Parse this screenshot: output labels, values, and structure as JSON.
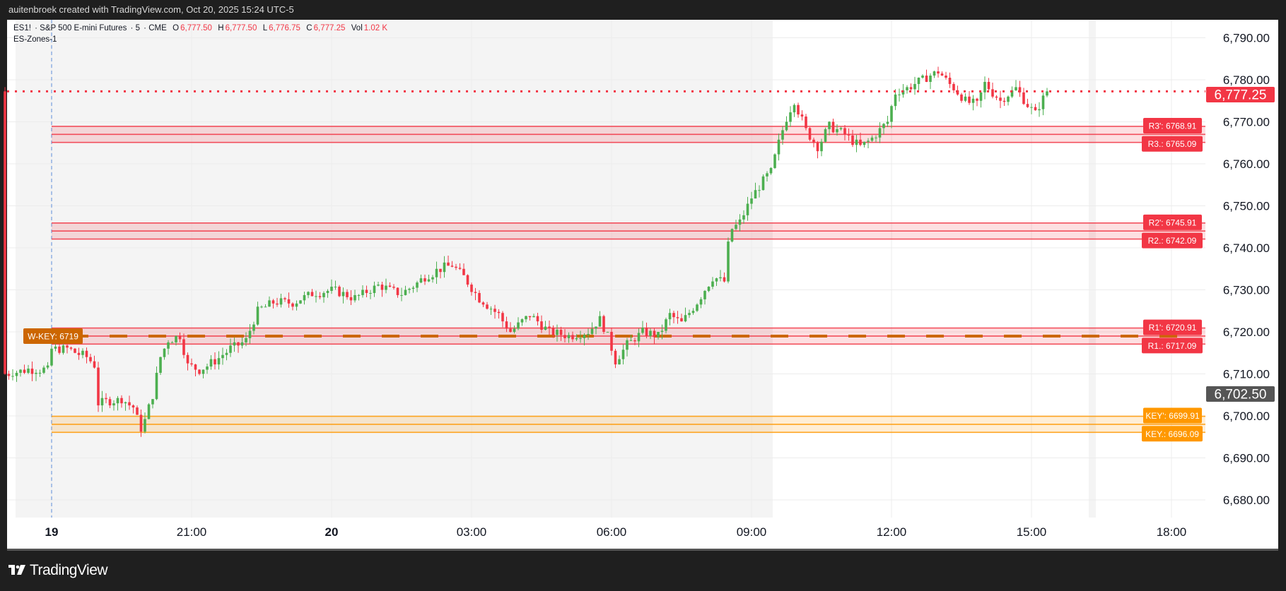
{
  "credit": "auitenbroek created with TradingView.com, Oct 20, 2025 15:24 UTC-5",
  "legend": {
    "symbol": "ES1!",
    "name": "S&P 500 E-mini Futures",
    "interval": "5",
    "exchange": "CME",
    "open_label": "O",
    "open": "6,777.50",
    "high_label": "H",
    "high": "6,777.50",
    "low_label": "L",
    "low": "6,776.75",
    "close_label": "C",
    "close": "6,777.25",
    "vol_label": "Vol",
    "vol": "1.02 K",
    "indicator": "ES-Zones-1"
  },
  "footer": {
    "logo_mark": "TV",
    "logo_text": "TradingView"
  },
  "colors": {
    "up": "#4caf50",
    "down": "#f23645",
    "zone_red": "#f23645",
    "zone_orange": "#ff9800",
    "wkey": "#cc6600",
    "session_bg": "#f4f4f4"
  },
  "chart_data": {
    "type": "candlestick",
    "symbol": "ES1!",
    "interval_minutes": 5,
    "ylim": [
      6675,
      6795
    ],
    "y_ticks": [
      "6,790.00",
      "6,780.00",
      "6,770.00",
      "6,760.00",
      "6,750.00",
      "6,740.00",
      "6,730.00",
      "6,720.00",
      "6,710.00",
      "6,700.00",
      "6,690.00",
      "6,680.00"
    ],
    "y_tick_values": [
      6790,
      6780,
      6770,
      6760,
      6750,
      6740,
      6730,
      6720,
      6710,
      6700,
      6690,
      6680
    ],
    "x_ticks": [
      {
        "label": "19",
        "minutes": 0,
        "bold": true
      },
      {
        "label": "21:00",
        "minutes": 180
      },
      {
        "label": "20",
        "minutes": 360,
        "bold": true
      },
      {
        "label": "03:00",
        "minutes": 540
      },
      {
        "label": "06:00",
        "minutes": 720
      },
      {
        "label": "09:00",
        "minutes": 900
      },
      {
        "label": "12:00",
        "minutes": 1080
      },
      {
        "label": "15:00",
        "minutes": 1260
      },
      {
        "label": "18:00",
        "minutes": 1440
      }
    ],
    "price_path": [
      [
        -60,
        6710
      ],
      [
        -30,
        6711
      ],
      [
        -5,
        6711
      ],
      [
        0,
        6716
      ],
      [
        20,
        6716
      ],
      [
        45,
        6714
      ],
      [
        55,
        6712
      ],
      [
        60,
        6703
      ],
      [
        90,
        6704
      ],
      [
        105,
        6702
      ],
      [
        115,
        6697
      ],
      [
        120,
        6699
      ],
      [
        130,
        6705
      ],
      [
        140,
        6714
      ],
      [
        150,
        6718
      ],
      [
        165,
        6719
      ],
      [
        175,
        6712
      ],
      [
        190,
        6711
      ],
      [
        210,
        6713
      ],
      [
        230,
        6716
      ],
      [
        250,
        6718
      ],
      [
        265,
        6725
      ],
      [
        285,
        6727
      ],
      [
        310,
        6727
      ],
      [
        335,
        6729
      ],
      [
        360,
        6730
      ],
      [
        390,
        6728
      ],
      [
        420,
        6731
      ],
      [
        450,
        6729
      ],
      [
        480,
        6733
      ],
      [
        500,
        6735
      ],
      [
        515,
        6736
      ],
      [
        530,
        6733
      ],
      [
        550,
        6728
      ],
      [
        575,
        6724
      ],
      [
        590,
        6720
      ],
      [
        615,
        6724
      ],
      [
        640,
        6720
      ],
      [
        665,
        6719
      ],
      [
        690,
        6720
      ],
      [
        705,
        6723
      ],
      [
        715,
        6719
      ],
      [
        725,
        6713
      ],
      [
        740,
        6717
      ],
      [
        760,
        6720
      ],
      [
        780,
        6719
      ],
      [
        795,
        6724
      ],
      [
        810,
        6722
      ],
      [
        830,
        6727
      ],
      [
        850,
        6733
      ],
      [
        865,
        6732
      ],
      [
        872,
        6744
      ],
      [
        885,
        6746
      ],
      [
        900,
        6752
      ],
      [
        915,
        6756
      ],
      [
        925,
        6758
      ],
      [
        935,
        6765
      ],
      [
        945,
        6771
      ],
      [
        955,
        6775
      ],
      [
        970,
        6768
      ],
      [
        985,
        6764
      ],
      [
        1000,
        6769
      ],
      [
        1020,
        6767
      ],
      [
        1040,
        6764
      ],
      [
        1055,
        6766
      ],
      [
        1075,
        6770
      ],
      [
        1085,
        6777
      ],
      [
        1100,
        6778
      ],
      [
        1120,
        6780
      ],
      [
        1140,
        6782
      ],
      [
        1155,
        6779
      ],
      [
        1175,
        6775
      ],
      [
        1190,
        6774
      ],
      [
        1200,
        6779
      ],
      [
        1220,
        6775
      ],
      [
        1240,
        6778
      ],
      [
        1255,
        6774
      ],
      [
        1265,
        6772
      ],
      [
        1280,
        6777.25
      ]
    ],
    "last_price": "6,777.25",
    "crosshair_price": "6,702.50",
    "zones": [
      {
        "name": "R3",
        "upper": 6768.91,
        "lower": 6765.09,
        "upper_label": "R3': 6768.91",
        "lower_label": "R3.: 6765.09",
        "color": "red"
      },
      {
        "name": "R2",
        "upper": 6745.91,
        "lower": 6742.09,
        "upper_label": "R2': 6745.91",
        "lower_label": "R2.: 6742.09",
        "color": "red"
      },
      {
        "name": "R1",
        "upper": 6720.91,
        "lower": 6717.09,
        "upper_label": "R1': 6720.91",
        "lower_label": "R1.: 6717.09",
        "color": "red"
      },
      {
        "name": "KEY",
        "upper": 6699.91,
        "lower": 6696.09,
        "upper_label": "KEY': 6699.91",
        "lower_label": "KEY.: 6696.09",
        "color": "orange"
      }
    ],
    "wkey": {
      "label": "W-KEY: 6719",
      "value": 6719
    }
  }
}
